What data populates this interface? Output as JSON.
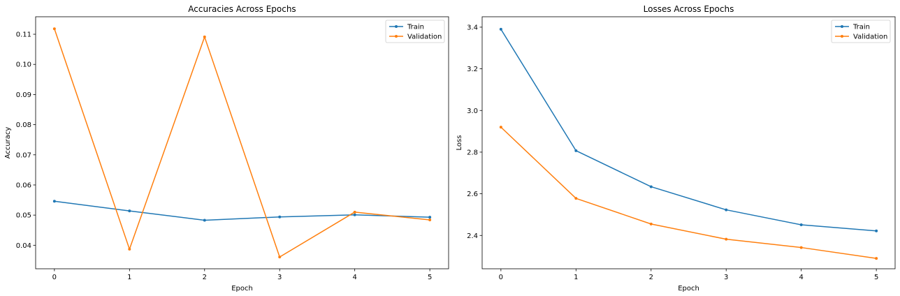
{
  "colors": {
    "train": "#1f77b4",
    "validation": "#ff7f0e"
  },
  "chart_data": [
    {
      "type": "line",
      "title": "Accuracies Across Epochs",
      "xlabel": "Epoch",
      "ylabel": "Accuracy",
      "x": [
        0,
        1,
        2,
        3,
        4,
        5
      ],
      "xlim": [
        -0.25,
        5.25
      ],
      "ylim": [
        0.0322,
        0.1158
      ],
      "xticks": [
        0,
        1,
        2,
        3,
        4,
        5
      ],
      "yticks": [
        0.04,
        0.05,
        0.06,
        0.07,
        0.08,
        0.09,
        0.1,
        0.11
      ],
      "ytick_labels": [
        "0.04",
        "0.05",
        "0.06",
        "0.07",
        "0.08",
        "0.09",
        "0.10",
        "0.11"
      ],
      "legend": "top-right",
      "grid": false,
      "series": [
        {
          "name": "Train",
          "color": "#1f77b4",
          "values": [
            0.0546,
            0.0514,
            0.0483,
            0.0494,
            0.0501,
            0.0493
          ]
        },
        {
          "name": "Validation",
          "color": "#ff7f0e",
          "values": [
            0.1118,
            0.0387,
            0.1091,
            0.0361,
            0.051,
            0.0484
          ]
        }
      ]
    },
    {
      "type": "line",
      "title": "Losses Across Epochs",
      "xlabel": "Epoch",
      "ylabel": "Loss",
      "x": [
        0,
        1,
        2,
        3,
        4,
        5
      ],
      "xlim": [
        -0.25,
        5.25
      ],
      "ylim": [
        2.24,
        3.45
      ],
      "xticks": [
        0,
        1,
        2,
        3,
        4,
        5
      ],
      "yticks": [
        2.4,
        2.6,
        2.8,
        3.0,
        3.2,
        3.4
      ],
      "ytick_labels": [
        "2.4",
        "2.6",
        "2.8",
        "3.0",
        "3.2",
        "3.4"
      ],
      "legend": "top-right",
      "grid": false,
      "series": [
        {
          "name": "Train",
          "color": "#1f77b4",
          "values": [
            3.39,
            2.807,
            2.634,
            2.523,
            2.451,
            2.422
          ]
        },
        {
          "name": "Validation",
          "color": "#ff7f0e",
          "values": [
            2.92,
            2.578,
            2.455,
            2.382,
            2.342,
            2.29
          ]
        }
      ]
    }
  ]
}
